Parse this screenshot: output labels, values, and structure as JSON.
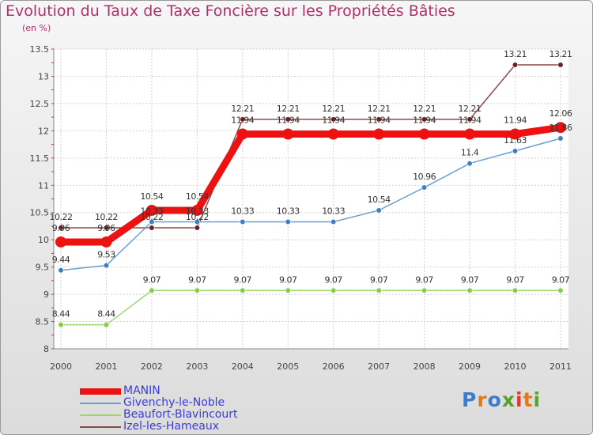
{
  "title": "Evolution du Taux de Taxe Foncière sur les Propriétés Bâties",
  "unit": "(en %)",
  "logo": {
    "text": "Proxiti",
    "colors": [
      "#3d7cc9",
      "#e07a1f",
      "#3d7cc9",
      "#5aa02c",
      "#e03a2f",
      "#e07a1f",
      "#5aa02c"
    ]
  },
  "chart_data": {
    "type": "line",
    "title": "Evolution du Taux de Taxe Foncière sur les Propriétés Bâties",
    "ylabel": "(en %)",
    "xlabel": "",
    "ylim": [
      8,
      13.5
    ],
    "yticks": [
      "8",
      "8.5",
      "9",
      "9.5",
      "10",
      "10.5",
      "11",
      "11.5",
      "12",
      "12.5",
      "13",
      "13.5"
    ],
    "categories": [
      "2000",
      "2001",
      "2002",
      "2003",
      "2004",
      "2005",
      "2006",
      "2007",
      "2008",
      "2009",
      "2010",
      "2011"
    ],
    "grid": true,
    "series": [
      {
        "name": "MANIN",
        "color": "#ee1111",
        "thick": true,
        "values": [
          9.96,
          9.96,
          10.54,
          10.54,
          11.94,
          11.94,
          11.94,
          11.94,
          11.94,
          11.94,
          11.94,
          12.06
        ],
        "labels": [
          "9.96",
          "9.96",
          "10.54",
          "10.54",
          "11.94",
          "11.94",
          "11.94",
          "11.94",
          "11.94",
          "11.94",
          "11.94",
          "12.06"
        ]
      },
      {
        "name": "Givenchy-le-Noble",
        "color": "#6a9fd0",
        "point": "#3d7fc4",
        "thick": false,
        "values": [
          9.44,
          9.53,
          10.33,
          10.33,
          10.33,
          10.33,
          10.33,
          10.54,
          10.96,
          11.4,
          11.63,
          11.86
        ],
        "labels": [
          "9.44",
          "9.53",
          "10.33",
          "10.33",
          "10.33",
          "10.33",
          "10.33",
          "10.54",
          "10.96",
          "11.4",
          "11.63",
          "11.86"
        ]
      },
      {
        "name": "Beaufort-Blavincourt",
        "color": "#9ed86a",
        "point": "#86cc48",
        "thick": false,
        "values": [
          8.44,
          8.44,
          9.07,
          9.07,
          9.07,
          9.07,
          9.07,
          9.07,
          9.07,
          9.07,
          9.07,
          9.07
        ],
        "labels": [
          "8.44",
          "8.44",
          "9.07",
          "9.07",
          "9.07",
          "9.07",
          "9.07",
          "9.07",
          "9.07",
          "9.07",
          "9.07",
          "9.07"
        ]
      },
      {
        "name": "Izel-les-Hameaux",
        "color": "#8a4a4a",
        "point": "#6e2020",
        "thick": false,
        "values": [
          10.22,
          10.22,
          10.22,
          10.22,
          12.21,
          12.21,
          12.21,
          12.21,
          12.21,
          12.21,
          13.21,
          13.21
        ],
        "labels": [
          "10.22",
          "10.22",
          "10.22",
          "10.22",
          "12.21",
          "12.21",
          "12.21",
          "12.21",
          "12.21",
          "12.21",
          "13.21",
          "13.21"
        ]
      }
    ]
  }
}
